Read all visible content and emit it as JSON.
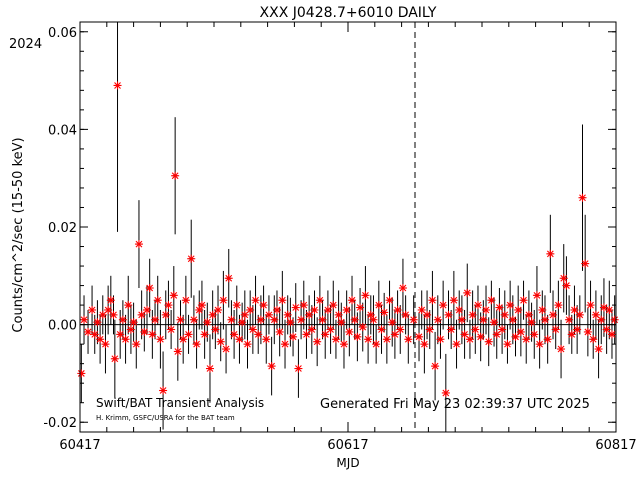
{
  "chart_data": {
    "type": "scatter",
    "title": "XXX J0428.7+6010 DAILY",
    "xlabel": "MJD",
    "ylabel": "Counts/cm^2/sec (15-50 keV)",
    "year_label": "2024",
    "xlim": [
      60417,
      60817
    ],
    "ylim": [
      -0.022,
      0.062
    ],
    "x_ticks": [
      60417,
      60617,
      60817
    ],
    "y_ticks": [
      -0.02,
      0.0,
      0.02,
      0.04,
      0.06
    ],
    "y_tick_labels": [
      "-0.02",
      "0.00",
      "0.02",
      "0.04",
      "0.06"
    ],
    "zero_line": 0.0,
    "vertical_dashed_line_x": 60667,
    "grid": false,
    "marker_color": "#ff0000",
    "errorbar_color": "#000000",
    "footer": {
      "left_main": "Swift/BAT Transient Analysis",
      "left_sub": "H. Krimm, GSFC/USRA for the BAT team",
      "generated": "Generated Fri May 23 02:39:37 UTC 2025"
    },
    "series": [
      {
        "name": "",
        "points": [
          [
            60418,
            -0.01,
            0.006
          ],
          [
            60420,
            0.001,
            0.005
          ],
          [
            60423,
            -0.0015,
            0.0045
          ],
          [
            60426,
            0.003,
            0.005
          ],
          [
            60428,
            -0.002,
            0.004
          ],
          [
            60430,
            0.0005,
            0.0045
          ],
          [
            60432,
            -0.003,
            0.005
          ],
          [
            60434,
            0.002,
            0.004
          ],
          [
            60436,
            -0.004,
            0.006
          ],
          [
            60438,
            0.003,
            0.005
          ],
          [
            60440,
            0.005,
            0.005
          ],
          [
            60442,
            0.002,
            0.004
          ],
          [
            60443,
            -0.007,
            0.008
          ],
          [
            60445,
            0.049,
            0.03
          ],
          [
            60447,
            -0.002,
            0.005
          ],
          [
            60449,
            0.001,
            0.004
          ],
          [
            60451,
            -0.003,
            0.005
          ],
          [
            60453,
            0.004,
            0.006
          ],
          [
            60455,
            -0.001,
            0.005
          ],
          [
            60457,
            0.0005,
            0.004
          ],
          [
            60459,
            -0.004,
            0.005
          ],
          [
            60461,
            0.0165,
            0.009
          ],
          [
            60463,
            0.002,
            0.005
          ],
          [
            60465,
            -0.0015,
            0.004
          ],
          [
            60467,
            0.003,
            0.005
          ],
          [
            60469,
            0.0075,
            0.006
          ],
          [
            60471,
            -0.002,
            0.005
          ],
          [
            60473,
            0.001,
            0.004
          ],
          [
            60475,
            0.005,
            0.005
          ],
          [
            60477,
            -0.003,
            0.006
          ],
          [
            60479,
            -0.0135,
            0.008
          ],
          [
            60481,
            0.002,
            0.005
          ],
          [
            60483,
            0.004,
            0.005
          ],
          [
            60485,
            -0.001,
            0.004
          ],
          [
            60487,
            0.006,
            0.006
          ],
          [
            60488,
            0.0305,
            0.012
          ],
          [
            60490,
            -0.0055,
            0.006
          ],
          [
            60492,
            0.001,
            0.004
          ],
          [
            60494,
            -0.003,
            0.005
          ],
          [
            60496,
            0.005,
            0.005
          ],
          [
            60498,
            -0.002,
            0.004
          ],
          [
            60500,
            0.0135,
            0.008
          ],
          [
            60502,
            0.001,
            0.005
          ],
          [
            60504,
            -0.004,
            0.005
          ],
          [
            60506,
            0.003,
            0.004
          ],
          [
            60508,
            0.004,
            0.005
          ],
          [
            60510,
            -0.002,
            0.005
          ],
          [
            60512,
            0.0005,
            0.004
          ],
          [
            60514,
            -0.009,
            0.007
          ],
          [
            60516,
            0.002,
            0.005
          ],
          [
            60518,
            -0.001,
            0.004
          ],
          [
            60520,
            0.003,
            0.005
          ],
          [
            60522,
            -0.0035,
            0.004
          ],
          [
            60524,
            0.005,
            0.006
          ],
          [
            60526,
            -0.005,
            0.005
          ],
          [
            60528,
            0.0095,
            0.006
          ],
          [
            60530,
            0.001,
            0.004
          ],
          [
            60532,
            -0.002,
            0.005
          ],
          [
            60534,
            0.004,
            0.004
          ],
          [
            60536,
            -0.003,
            0.005
          ],
          [
            60538,
            0.0005,
            0.004
          ],
          [
            60540,
            0.002,
            0.005
          ],
          [
            60542,
            -0.004,
            0.005
          ],
          [
            60544,
            0.003,
            0.004
          ],
          [
            60546,
            -0.001,
            0.005
          ],
          [
            60548,
            0.005,
            0.005
          ],
          [
            60550,
            -0.002,
            0.004
          ],
          [
            60552,
            0.001,
            0.005
          ],
          [
            60554,
            0.004,
            0.004
          ],
          [
            60556,
            -0.003,
            0.005
          ],
          [
            60558,
            0.002,
            0.004
          ],
          [
            60560,
            -0.0085,
            0.006
          ],
          [
            60562,
            0.001,
            0.005
          ],
          [
            60564,
            0.003,
            0.004
          ],
          [
            60566,
            -0.0015,
            0.005
          ],
          [
            60568,
            0.005,
            0.006
          ],
          [
            60570,
            -0.004,
            0.005
          ],
          [
            60572,
            0.002,
            0.004
          ],
          [
            60574,
            0.0005,
            0.005
          ],
          [
            60576,
            -0.0025,
            0.004
          ],
          [
            60578,
            0.0035,
            0.005
          ],
          [
            60580,
            -0.009,
            0.006
          ],
          [
            60582,
            0.001,
            0.004
          ],
          [
            60584,
            0.004,
            0.005
          ],
          [
            60586,
            -0.002,
            0.005
          ],
          [
            60588,
            0.002,
            0.004
          ],
          [
            60590,
            -0.001,
            0.005
          ],
          [
            60592,
            0.003,
            0.004
          ],
          [
            60594,
            -0.0035,
            0.005
          ],
          [
            60596,
            0.005,
            0.005
          ],
          [
            60598,
            0.001,
            0.004
          ],
          [
            60600,
            -0.002,
            0.005
          ],
          [
            60602,
            0.003,
            0.004
          ],
          [
            60604,
            -0.001,
            0.005
          ],
          [
            60606,
            0.004,
            0.005
          ],
          [
            60608,
            -0.003,
            0.004
          ],
          [
            60610,
            0.002,
            0.005
          ],
          [
            60612,
            0.0005,
            0.004
          ],
          [
            60614,
            -0.004,
            0.005
          ],
          [
            60616,
            0.003,
            0.004
          ],
          [
            60618,
            -0.0015,
            0.005
          ],
          [
            60620,
            0.005,
            0.005
          ],
          [
            60622,
            0.001,
            0.004
          ],
          [
            60624,
            -0.0025,
            0.005
          ],
          [
            60626,
            0.0035,
            0.004
          ],
          [
            60628,
            -0.0005,
            0.005
          ],
          [
            60630,
            0.006,
            0.006
          ],
          [
            60632,
            -0.003,
            0.005
          ],
          [
            60634,
            0.002,
            0.004
          ],
          [
            60636,
            0.001,
            0.005
          ],
          [
            60638,
            -0.004,
            0.004
          ],
          [
            60640,
            0.004,
            0.005
          ],
          [
            60642,
            -0.001,
            0.005
          ],
          [
            60644,
            0.0025,
            0.004
          ],
          [
            60646,
            -0.003,
            0.005
          ],
          [
            60648,
            0.005,
            0.004
          ],
          [
            60650,
            0.0005,
            0.005
          ],
          [
            60652,
            -0.002,
            0.005
          ],
          [
            60654,
            0.003,
            0.004
          ],
          [
            60656,
            -0.001,
            0.005
          ],
          [
            60658,
            0.0075,
            0.006
          ],
          [
            60660,
            0.002,
            0.004
          ],
          [
            60662,
            -0.003,
            0.005
          ],
          [
            60666,
            0.001,
            0.005
          ],
          [
            60670,
            -0.0025,
            0.005
          ],
          [
            60672,
            0.003,
            0.004
          ],
          [
            60674,
            -0.004,
            0.006
          ],
          [
            60676,
            0.002,
            0.005
          ],
          [
            60678,
            -0.001,
            0.004
          ],
          [
            60680,
            0.005,
            0.006
          ],
          [
            60682,
            -0.0085,
            0.007
          ],
          [
            60684,
            0.001,
            0.005
          ],
          [
            60686,
            -0.003,
            0.004
          ],
          [
            60688,
            0.004,
            0.005
          ],
          [
            60690,
            -0.014,
            0.008
          ],
          [
            60692,
            0.002,
            0.005
          ],
          [
            60694,
            -0.001,
            0.004
          ],
          [
            60696,
            0.005,
            0.006
          ],
          [
            60698,
            -0.004,
            0.005
          ],
          [
            60700,
            0.003,
            0.004
          ],
          [
            60702,
            0.001,
            0.005
          ],
          [
            60704,
            -0.002,
            0.005
          ],
          [
            60706,
            0.0065,
            0.006
          ],
          [
            60708,
            -0.003,
            0.004
          ],
          [
            60710,
            0.002,
            0.005
          ],
          [
            60712,
            -0.001,
            0.005
          ],
          [
            60714,
            0.004,
            0.004
          ],
          [
            60716,
            -0.0025,
            0.005
          ],
          [
            60718,
            0.001,
            0.004
          ],
          [
            60720,
            0.003,
            0.005
          ],
          [
            60722,
            -0.0035,
            0.005
          ],
          [
            60724,
            0.005,
            0.004
          ],
          [
            60726,
            0.0005,
            0.005
          ],
          [
            60728,
            -0.002,
            0.005
          ],
          [
            60730,
            0.0035,
            0.004
          ],
          [
            60732,
            -0.001,
            0.005
          ],
          [
            60734,
            0.002,
            0.005
          ],
          [
            60736,
            -0.004,
            0.004
          ],
          [
            60738,
            0.004,
            0.005
          ],
          [
            60740,
            0.001,
            0.005
          ],
          [
            60742,
            -0.0025,
            0.004
          ],
          [
            60744,
            0.003,
            0.005
          ],
          [
            60746,
            -0.0015,
            0.005
          ],
          [
            60748,
            0.005,
            0.004
          ],
          [
            60750,
            -0.003,
            0.005
          ],
          [
            60752,
            0.002,
            0.005
          ],
          [
            60754,
            0.0005,
            0.004
          ],
          [
            60756,
            -0.002,
            0.005
          ],
          [
            60758,
            0.006,
            0.006
          ],
          [
            60760,
            -0.004,
            0.005
          ],
          [
            60762,
            0.003,
            0.004
          ],
          [
            60764,
            0.001,
            0.005
          ],
          [
            60766,
            -0.003,
            0.005
          ],
          [
            60768,
            0.0145,
            0.008
          ],
          [
            60770,
            0.002,
            0.005
          ],
          [
            60772,
            -0.001,
            0.004
          ],
          [
            60774,
            0.004,
            0.005
          ],
          [
            60776,
            -0.005,
            0.006
          ],
          [
            60778,
            0.0095,
            0.007
          ],
          [
            60780,
            0.008,
            0.006
          ],
          [
            60782,
            0.001,
            0.005
          ],
          [
            60784,
            -0.002,
            0.004
          ],
          [
            60786,
            0.003,
            0.005
          ],
          [
            60788,
            -0.001,
            0.005
          ],
          [
            60790,
            0.002,
            0.004
          ],
          [
            60792,
            0.026,
            0.015
          ],
          [
            60794,
            0.0125,
            0.01
          ],
          [
            60796,
            -0.0015,
            0.005
          ],
          [
            60798,
            0.004,
            0.005
          ],
          [
            60800,
            -0.003,
            0.004
          ],
          [
            60802,
            0.002,
            0.005
          ],
          [
            60804,
            -0.005,
            0.006
          ],
          [
            60806,
            0.001,
            0.005
          ],
          [
            60808,
            0.0035,
            0.006
          ],
          [
            60810,
            -0.001,
            0.005
          ],
          [
            60812,
            0.003,
            0.006
          ],
          [
            60814,
            -0.002,
            0.005
          ],
          [
            60816,
            0.001,
            0.005
          ]
        ]
      }
    ]
  }
}
